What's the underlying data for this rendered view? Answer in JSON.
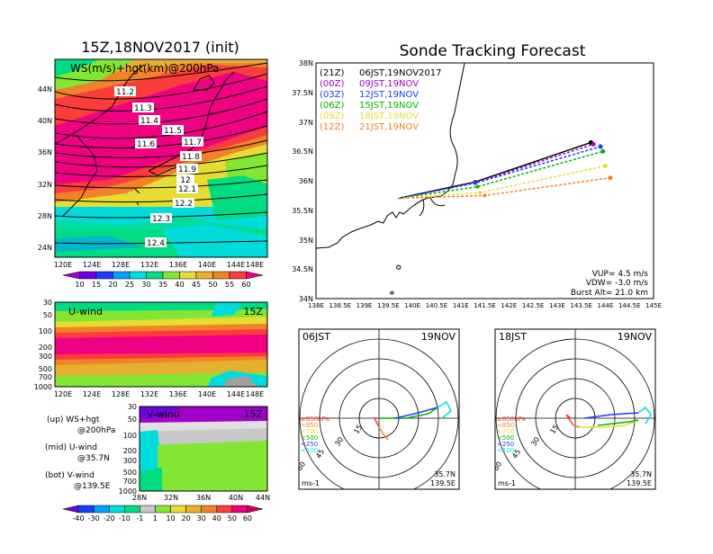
{
  "left": {
    "title": "15Z,18NOV2017 (init)",
    "map": {
      "label": "WS(m/s)+hgt(km)@200hPa",
      "lat_labels": [
        "44N",
        "40N",
        "36N",
        "32N",
        "28N",
        "24N"
      ],
      "lon_labels": [
        "120E",
        "124E",
        "128E",
        "132E",
        "136E",
        "140E",
        "144E",
        "148E"
      ],
      "contours": [
        "11.2",
        "11.3",
        "11.4",
        "11.5",
        "11.6",
        "11.7",
        "11.8",
        "11.9",
        "12",
        "12.1",
        "12.2",
        "12.3",
        "12.4"
      ],
      "colorbar": [
        "10",
        "15",
        "20",
        "25",
        "30",
        "35",
        "40",
        "45",
        "50",
        "55",
        "60"
      ],
      "colorbar_colors": [
        "#a000c8",
        "#6e00dc",
        "#1e3cff",
        "#00a0ff",
        "#00dcdc",
        "#00dc82",
        "#82e632",
        "#e6dc32",
        "#e6af2d",
        "#f08228",
        "#fa3c3c",
        "#f00082"
      ]
    },
    "uwind": {
      "label": "U-wind",
      "time": "15Z",
      "levels": [
        "30",
        "50",
        "100",
        "200",
        "300",
        "500",
        "700",
        "1000"
      ],
      "lon_labels": [
        "120E",
        "124E",
        "128E",
        "132E",
        "136E",
        "140E",
        "144E",
        "148E"
      ]
    },
    "vwind": {
      "label": "V-wind",
      "time": "15Z",
      "levels": [
        "30",
        "50",
        "100",
        "200",
        "300",
        "500",
        "700",
        "1000"
      ],
      "lat_labels": [
        "28N",
        "32N",
        "36N",
        "40N",
        "44N"
      ],
      "colorbar": [
        "-40",
        "-30",
        "-20",
        "-10",
        "-1",
        "1",
        "10",
        "20",
        "30",
        "40",
        "50",
        "60"
      ]
    },
    "legend": [
      {
        "a": "(up) WS+hgt",
        "b": "@200hPa"
      },
      {
        "a": "(mid) U-wind",
        "b": "@35.7N"
      },
      {
        "a": "(bot) V-wind",
        "b": "@139.5E"
      }
    ]
  },
  "right": {
    "title": "Sonde Tracking Forecast",
    "lat_labels": [
      "38N",
      "37.5N",
      "37N",
      "36.5N",
      "36N",
      "35.5N",
      "35N",
      "34.5N",
      "34N"
    ],
    "lon_labels": [
      "138E",
      "138.5E",
      "139E",
      "139.5E",
      "140E",
      "140.5E",
      "141E",
      "141.5E",
      "142E",
      "142.5E",
      "143E",
      "143.5E",
      "144E",
      "144.5E",
      "145E"
    ],
    "launches": [
      {
        "utc": "(21Z)",
        "jst": "06JST,19NOV2017",
        "color": "#000000"
      },
      {
        "utc": "(00Z)",
        "jst": "09JST,19NOV",
        "color": "#a000c8"
      },
      {
        "utc": "(03Z)",
        "jst": "12JST,19NOV",
        "color": "#1e3cff"
      },
      {
        "utc": "(06Z)",
        "jst": "15JST,19NOV",
        "color": "#00b400"
      },
      {
        "utc": "(09Z)",
        "jst": "18JST,19NOV",
        "color": "#e6dc32"
      },
      {
        "utc": "(12Z)",
        "jst": "21JST,19NOV",
        "color": "#f08228"
      }
    ],
    "params": [
      "VUP= 4.5 m/s",
      "VDW= -3.0 m/s",
      "Burst Alt= 21.0 km"
    ],
    "hodo1": {
      "time": "06JST",
      "date": "19NOV"
    },
    "hodo2": {
      "time": "18JST",
      "date": "19NOV"
    },
    "hodo_common": {
      "rings": [
        "15",
        "30",
        "45",
        "60"
      ],
      "levels": [
        "≥850hPa",
        "<850",
        "<700",
        "<500",
        "<250",
        "<100"
      ],
      "level_colors": [
        "#fa3c3c",
        "#f08228",
        "#e6dc32",
        "#00b400",
        "#1e3cff",
        "#00dcdc"
      ],
      "unit": "ms-1",
      "lat": "35.7N",
      "lon": "139.5E"
    }
  },
  "chart_data": [
    {
      "type": "heatmap",
      "title": "15Z,18NOV2017 (init)",
      "xlabel": "",
      "ylabel": "",
      "xlim": [
        120,
        149
      ],
      "ylim": [
        21,
        47
      ],
      "variable": "WS(m/s)+hgt(km)@200hPa",
      "contour_levels_km": [
        11.2,
        11.3,
        11.4,
        11.5,
        11.6,
        11.7,
        11.8,
        11.9,
        12,
        12.1,
        12.2,
        12.3,
        12.4
      ]
    },
    {
      "type": "line",
      "title": "Sonde Tracking Forecast",
      "xlim": [
        138,
        145
      ],
      "ylim": [
        34,
        38
      ],
      "series": [
        {
          "name": "(21Z) 06JST,19NOV2017",
          "x": [
            139.7,
            141.3,
            143.7
          ],
          "y": [
            35.7,
            35.98,
            36.65
          ]
        },
        {
          "name": "(00Z) 09JST,19NOV",
          "x": [
            139.7,
            141.3,
            143.75
          ],
          "y": [
            35.7,
            35.97,
            36.62
          ]
        },
        {
          "name": "(03Z) 12JST,19NOV",
          "x": [
            139.7,
            141.3,
            143.9
          ],
          "y": [
            35.7,
            35.96,
            36.58
          ]
        },
        {
          "name": "(06Z) 15JST,19NOV",
          "x": [
            139.7,
            141.35,
            143.95
          ],
          "y": [
            35.7,
            35.9,
            36.5
          ]
        },
        {
          "name": "(09Z) 18JST,19NOV",
          "x": [
            139.7,
            141.4,
            144.0
          ],
          "y": [
            35.7,
            35.8,
            36.25
          ]
        },
        {
          "name": "(12Z) 21JST,19NOV",
          "x": [
            139.7,
            141.5,
            144.1
          ],
          "y": [
            35.7,
            35.75,
            36.05
          ]
        }
      ]
    }
  ]
}
